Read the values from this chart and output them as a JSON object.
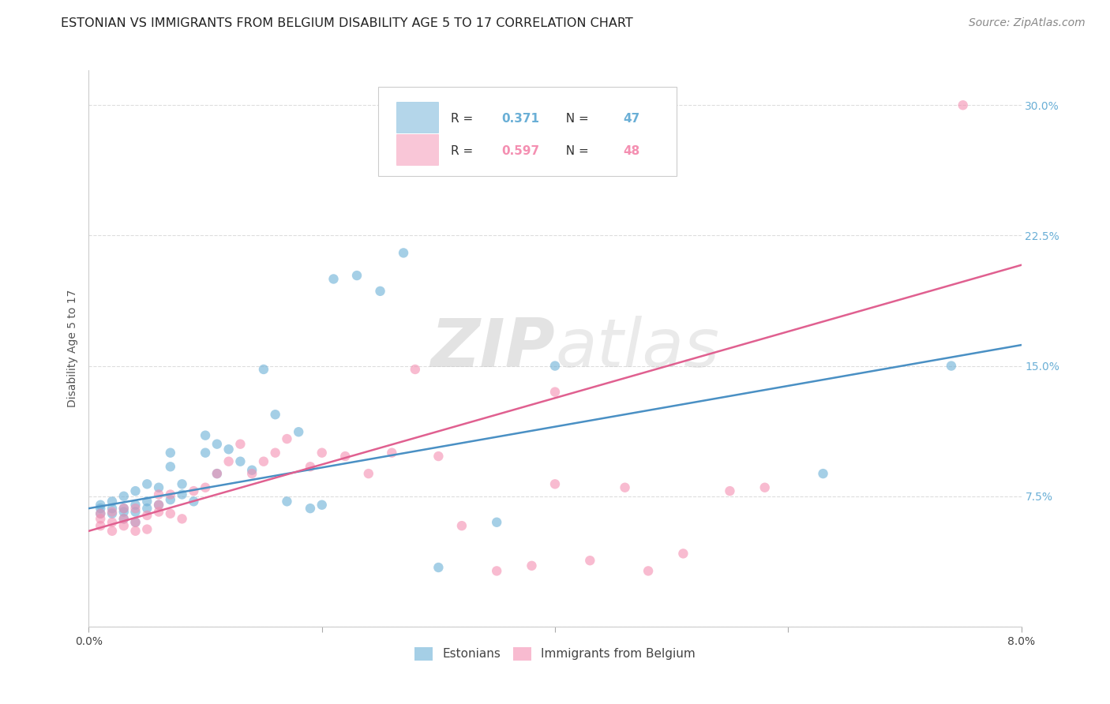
{
  "title": "ESTONIAN VS IMMIGRANTS FROM BELGIUM DISABILITY AGE 5 TO 17 CORRELATION CHART",
  "source": "Source: ZipAtlas.com",
  "ylabel": "Disability Age 5 to 17",
  "x_min": 0.0,
  "x_max": 0.08,
  "y_min": 0.0,
  "y_max": 0.32,
  "x_ticks": [
    0.0,
    0.02,
    0.04,
    0.06,
    0.08
  ],
  "x_tick_labels": [
    "0.0%",
    "",
    "",
    "",
    "8.0%"
  ],
  "y_ticks": [
    0.0,
    0.075,
    0.15,
    0.225,
    0.3
  ],
  "y_tick_labels": [
    "",
    "7.5%",
    "15.0%",
    "22.5%",
    "30.0%"
  ],
  "blue_color": "#6aafd6",
  "pink_color": "#f48fb1",
  "blue_color_dark": "#4a90c4",
  "pink_color_dark": "#e06090",
  "legend_R1": "0.371",
  "legend_N1": "47",
  "legend_R2": "0.597",
  "legend_N2": "48",
  "watermark_zip": "ZIP",
  "watermark_atlas": "atlas",
  "estonians_x": [
    0.001,
    0.001,
    0.001,
    0.002,
    0.002,
    0.002,
    0.003,
    0.003,
    0.003,
    0.003,
    0.004,
    0.004,
    0.004,
    0.004,
    0.005,
    0.005,
    0.005,
    0.006,
    0.006,
    0.007,
    0.007,
    0.007,
    0.008,
    0.008,
    0.009,
    0.01,
    0.01,
    0.011,
    0.011,
    0.012,
    0.013,
    0.014,
    0.015,
    0.016,
    0.017,
    0.018,
    0.019,
    0.02,
    0.021,
    0.023,
    0.025,
    0.027,
    0.03,
    0.035,
    0.04,
    0.063,
    0.074
  ],
  "estonians_y": [
    0.065,
    0.068,
    0.07,
    0.065,
    0.068,
    0.072,
    0.062,
    0.066,
    0.068,
    0.075,
    0.06,
    0.066,
    0.07,
    0.078,
    0.068,
    0.072,
    0.082,
    0.07,
    0.08,
    0.073,
    0.092,
    0.1,
    0.076,
    0.082,
    0.072,
    0.1,
    0.11,
    0.088,
    0.105,
    0.102,
    0.095,
    0.09,
    0.148,
    0.122,
    0.072,
    0.112,
    0.068,
    0.07,
    0.2,
    0.202,
    0.193,
    0.215,
    0.034,
    0.06,
    0.15,
    0.088,
    0.15
  ],
  "immigrants_x": [
    0.001,
    0.001,
    0.001,
    0.002,
    0.002,
    0.002,
    0.003,
    0.003,
    0.003,
    0.004,
    0.004,
    0.004,
    0.005,
    0.005,
    0.006,
    0.006,
    0.006,
    0.007,
    0.007,
    0.008,
    0.009,
    0.01,
    0.011,
    0.012,
    0.013,
    0.014,
    0.015,
    0.016,
    0.017,
    0.019,
    0.02,
    0.022,
    0.024,
    0.026,
    0.028,
    0.03,
    0.032,
    0.035,
    0.038,
    0.04,
    0.043,
    0.046,
    0.048,
    0.051,
    0.055,
    0.04,
    0.058,
    0.075
  ],
  "immigrants_y": [
    0.058,
    0.062,
    0.065,
    0.055,
    0.06,
    0.066,
    0.058,
    0.062,
    0.068,
    0.055,
    0.06,
    0.068,
    0.056,
    0.064,
    0.066,
    0.07,
    0.076,
    0.065,
    0.076,
    0.062,
    0.078,
    0.08,
    0.088,
    0.095,
    0.105,
    0.088,
    0.095,
    0.1,
    0.108,
    0.092,
    0.1,
    0.098,
    0.088,
    0.1,
    0.148,
    0.098,
    0.058,
    0.032,
    0.035,
    0.082,
    0.038,
    0.08,
    0.032,
    0.042,
    0.078,
    0.135,
    0.08,
    0.3
  ],
  "blue_line_x": [
    0.0,
    0.08
  ],
  "blue_line_y": [
    0.068,
    0.162
  ],
  "pink_line_x": [
    0.0,
    0.08
  ],
  "pink_line_y": [
    0.055,
    0.208
  ],
  "grid_color": "#dddddd",
  "background_color": "#ffffff",
  "title_fontsize": 11.5,
  "axis_label_fontsize": 10,
  "tick_fontsize": 10,
  "source_fontsize": 10
}
